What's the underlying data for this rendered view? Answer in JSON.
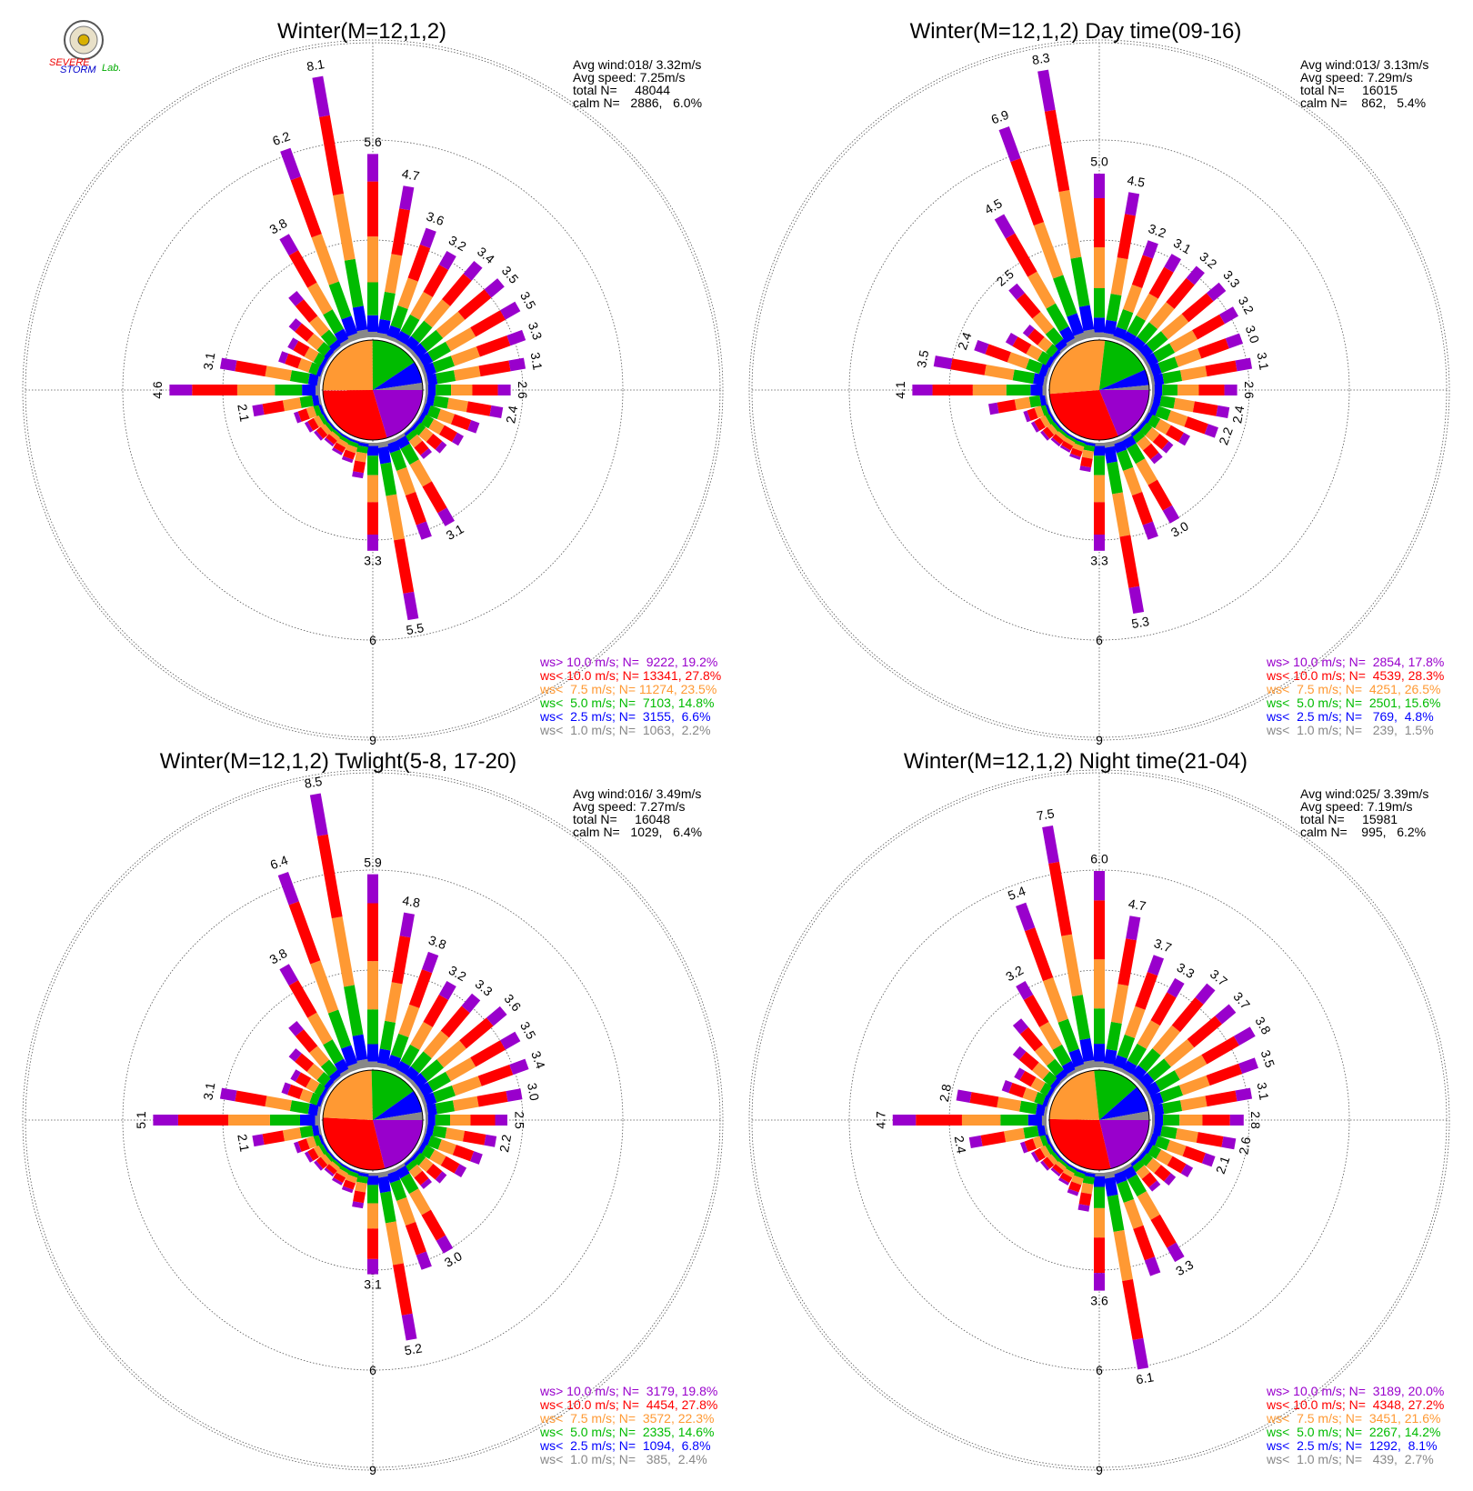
{
  "logo": {
    "text_red": "SEVERE",
    "text_blue": "STORM",
    "text_green": "Lab."
  },
  "colors": {
    "gt10": "#9900cc",
    "lt10": "#ff0000",
    "lt75": "#ff9933",
    "lt5": "#00bb00",
    "lt25": "#0000ff",
    "lt1": "#888888"
  },
  "chart_data": [
    {
      "type": "wind-rose",
      "title": "Winter(M=12,1,2)",
      "avg_wind": "Avg wind:018/ 3.32m/s",
      "avg_speed": "Avg speed: 7.25m/s",
      "total": "total N=     48044",
      "calm": "calm N=   2886,   6.0%",
      "rings": [
        "3",
        "6",
        "9"
      ],
      "direction_step_deg": 10,
      "label_totals": [
        5.6,
        4.7,
        3.6,
        3.2,
        3.4,
        3.5,
        3.5,
        3.3,
        3.1,
        2.6,
        2.4,
        null,
        null,
        null,
        null,
        3.1,
        null,
        5.5,
        3.3,
        null,
        null,
        null,
        null,
        null,
        null,
        null,
        2.1,
        4.6,
        3.1,
        null,
        null,
        null,
        null,
        3.8,
        6.2,
        8.1
      ],
      "bar_totals": [
        5.6,
        4.7,
        3.6,
        3.2,
        3.4,
        3.5,
        3.5,
        3.3,
        3.1,
        2.6,
        2.4,
        1.8,
        1.5,
        1.2,
        1.0,
        3.1,
        3.2,
        5.5,
        3.3,
        1.1,
        0.7,
        0.6,
        0.5,
        0.6,
        0.7,
        0.9,
        2.1,
        4.6,
        3.1,
        1.4,
        1.3,
        1.6,
        2.2,
        3.8,
        6.2,
        8.1
      ],
      "legend": [
        {
          "key": "gt10",
          "text": "ws> 10.0 m/s; N=  9222, 19.2%"
        },
        {
          "key": "lt10",
          "text": "ws< 10.0 m/s; N= 13341, 27.8%"
        },
        {
          "key": "lt75",
          "text": "ws<  7.5 m/s; N= 11274, 23.5%"
        },
        {
          "key": "lt5",
          "text": "ws<  5.0 m/s; N=  7103, 14.8%"
        },
        {
          "key": "lt25",
          "text": "ws<  2.5 m/s; N=  3155,  6.6%"
        },
        {
          "key": "lt1",
          "text": "ws<  1.0 m/s; N=  1063,  2.2%"
        }
      ],
      "pie_percent": [
        19.2,
        27.8,
        23.5,
        14.8,
        6.6,
        2.2
      ]
    },
    {
      "type": "wind-rose",
      "title": "Winter(M=12,1,2) Day time(09-16)",
      "avg_wind": "Avg wind:013/ 3.13m/s",
      "avg_speed": "Avg speed: 7.29m/s",
      "total": "total N=     16015",
      "calm": "calm N=    862,   5.4%",
      "rings": [
        "3",
        "6",
        "9"
      ],
      "direction_step_deg": 10,
      "label_totals": [
        5.0,
        4.5,
        3.2,
        3.1,
        3.2,
        3.3,
        3.2,
        3.0,
        3.1,
        2.6,
        2.4,
        2.2,
        null,
        null,
        null,
        3.0,
        null,
        5.3,
        3.3,
        null,
        null,
        null,
        null,
        null,
        null,
        null,
        null,
        4.1,
        3.5,
        2.4,
        null,
        null,
        2.5,
        4.5,
        6.9,
        8.3
      ],
      "bar_totals": [
        5.0,
        4.5,
        3.2,
        3.1,
        3.2,
        3.3,
        3.2,
        3.0,
        3.1,
        2.6,
        2.4,
        2.2,
        1.5,
        1.2,
        1.2,
        3.0,
        3.2,
        5.3,
        3.3,
        0.9,
        0.6,
        0.5,
        0.5,
        0.6,
        0.7,
        0.8,
        1.8,
        4.1,
        3.5,
        2.4,
        1.6,
        1.3,
        2.5,
        4.5,
        6.9,
        8.3
      ],
      "legend": [
        {
          "key": "gt10",
          "text": "ws> 10.0 m/s; N=  2854, 17.8%"
        },
        {
          "key": "lt10",
          "text": "ws< 10.0 m/s; N=  4539, 28.3%"
        },
        {
          "key": "lt75",
          "text": "ws<  7.5 m/s; N=  4251, 26.5%"
        },
        {
          "key": "lt5",
          "text": "ws<  5.0 m/s; N=  2501, 15.6%"
        },
        {
          "key": "lt25",
          "text": "ws<  2.5 m/s; N=   769,  4.8%"
        },
        {
          "key": "lt1",
          "text": "ws<  1.0 m/s; N=   239,  1.5%"
        }
      ],
      "pie_percent": [
        17.8,
        28.3,
        26.5,
        15.6,
        4.8,
        1.5
      ]
    },
    {
      "type": "wind-rose",
      "title": "Winter(M=12,1,2) Twlight(5-8, 17-20)",
      "avg_wind": "Avg wind:016/ 3.49m/s",
      "avg_speed": "Avg speed: 7.27m/s",
      "total": "total N=     16048",
      "calm": "calm N=   1029,   6.4%",
      "rings": [
        "3",
        "6",
        "9"
      ],
      "direction_step_deg": 10,
      "label_totals": [
        5.9,
        4.8,
        3.8,
        3.2,
        3.3,
        3.6,
        3.5,
        3.4,
        3.0,
        2.5,
        2.2,
        null,
        null,
        null,
        null,
        3.0,
        null,
        5.2,
        3.1,
        null,
        null,
        null,
        null,
        null,
        null,
        null,
        2.1,
        5.1,
        3.1,
        null,
        null,
        null,
        null,
        3.8,
        6.4,
        8.5
      ],
      "bar_totals": [
        5.9,
        4.8,
        3.8,
        3.2,
        3.3,
        3.6,
        3.5,
        3.4,
        3.0,
        2.5,
        2.2,
        1.9,
        1.6,
        1.2,
        1.0,
        3.0,
        3.2,
        5.2,
        3.1,
        1.1,
        0.7,
        0.6,
        0.5,
        0.6,
        0.7,
        0.9,
        2.1,
        5.1,
        3.1,
        1.3,
        1.2,
        1.6,
        2.2,
        3.8,
        6.4,
        8.5
      ],
      "legend": [
        {
          "key": "gt10",
          "text": "ws> 10.0 m/s; N=  3179, 19.8%"
        },
        {
          "key": "lt10",
          "text": "ws< 10.0 m/s; N=  4454, 27.8%"
        },
        {
          "key": "lt75",
          "text": "ws<  7.5 m/s; N=  3572, 22.3%"
        },
        {
          "key": "lt5",
          "text": "ws<  5.0 m/s; N=  2335, 14.6%"
        },
        {
          "key": "lt25",
          "text": "ws<  2.5 m/s; N=  1094,  6.8%"
        },
        {
          "key": "lt1",
          "text": "ws<  1.0 m/s; N=   385,  2.4%"
        }
      ],
      "pie_percent": [
        19.8,
        27.8,
        22.3,
        14.6,
        6.8,
        2.4
      ]
    },
    {
      "type": "wind-rose",
      "title": "Winter(M=12,1,2) Night time(21-04)",
      "avg_wind": "Avg wind:025/ 3.39m/s",
      "avg_speed": "Avg speed: 7.19m/s",
      "total": "total N=     15981",
      "calm": "calm N=    995,   6.2%",
      "rings": [
        "3",
        "6",
        "9"
      ],
      "direction_step_deg": 10,
      "label_totals": [
        6.0,
        4.7,
        3.7,
        3.3,
        3.7,
        3.7,
        3.8,
        3.5,
        3.1,
        2.8,
        2.6,
        2.1,
        null,
        null,
        null,
        3.3,
        null,
        6.1,
        3.6,
        null,
        null,
        null,
        null,
        null,
        null,
        null,
        2.4,
        4.7,
        2.8,
        null,
        null,
        null,
        null,
        3.2,
        5.4,
        7.5
      ],
      "bar_totals": [
        6.0,
        4.7,
        3.7,
        3.3,
        3.7,
        3.7,
        3.8,
        3.5,
        3.1,
        2.8,
        2.6,
        2.1,
        1.6,
        1.3,
        1.1,
        3.3,
        3.4,
        6.1,
        3.6,
        1.2,
        0.8,
        0.6,
        0.5,
        0.6,
        0.7,
        0.9,
        2.4,
        4.7,
        2.8,
        1.5,
        1.3,
        1.7,
        2.3,
        3.2,
        5.4,
        7.5
      ],
      "legend": [
        {
          "key": "gt10",
          "text": "ws> 10.0 m/s; N=  3189, 20.0%"
        },
        {
          "key": "lt10",
          "text": "ws< 10.0 m/s; N=  4348, 27.2%"
        },
        {
          "key": "lt75",
          "text": "ws<  7.5 m/s; N=  3451, 21.6%"
        },
        {
          "key": "lt5",
          "text": "ws<  5.0 m/s; N=  2267, 14.2%"
        },
        {
          "key": "lt25",
          "text": "ws<  2.5 m/s; N=  1292,  8.1%"
        },
        {
          "key": "lt1",
          "text": "ws<  1.0 m/s; N=   439,  2.7%"
        }
      ],
      "pie_percent": [
        20.0,
        27.2,
        21.6,
        14.2,
        8.1,
        2.7
      ]
    }
  ]
}
